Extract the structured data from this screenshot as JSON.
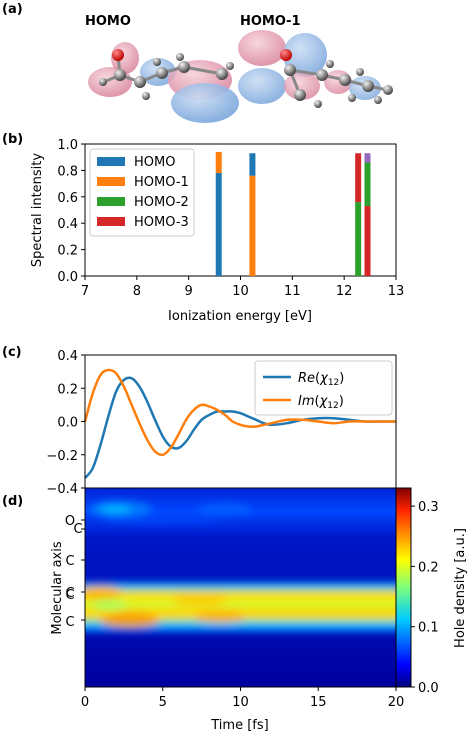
{
  "panel_labels": [
    "(a)",
    "(b)",
    "(c)",
    "(d)"
  ],
  "orbital_labels": [
    "HOMO",
    "HOMO-1"
  ],
  "chart_data": [
    {
      "panel": "(b)",
      "type": "bar",
      "xlabel": "Ionization energy [eV]",
      "ylabel": "Spectral intensity",
      "xlim": [
        7,
        13
      ],
      "ylim": [
        0,
        1.0
      ],
      "xticks": [
        "7",
        "8",
        "9",
        "10",
        "11",
        "12",
        "13"
      ],
      "yticks": [
        "0.0",
        "0.2",
        "0.4",
        "0.6",
        "0.8",
        "1.0"
      ],
      "legend_position": "top-left",
      "series": [
        {
          "name": "HOMO",
          "color": "#1f77b4"
        },
        {
          "name": "HOMO-1",
          "color": "#ff7f0e"
        },
        {
          "name": "HOMO-2",
          "color": "#2ca02c"
        },
        {
          "name": "HOMO-3",
          "color": "#d62728"
        },
        {
          "color": "#9467bd"
        }
      ],
      "stacked_bars": [
        {
          "x": 9.58,
          "segments": [
            {
              "series": 0,
              "from": 0.0,
              "to": 0.78
            },
            {
              "series": 1,
              "from": 0.78,
              "to": 0.94
            }
          ]
        },
        {
          "x": 10.23,
          "segments": [
            {
              "series": 1,
              "from": 0.0,
              "to": 0.76
            },
            {
              "series": 0,
              "from": 0.76,
              "to": 0.93
            }
          ]
        },
        {
          "x": 12.27,
          "segments": [
            {
              "series": 2,
              "from": 0.0,
              "to": 0.56
            },
            {
              "series": 3,
              "from": 0.56,
              "to": 0.93
            }
          ]
        },
        {
          "x": 12.45,
          "segments": [
            {
              "series": 3,
              "from": 0.0,
              "to": 0.53
            },
            {
              "series": 2,
              "from": 0.53,
              "to": 0.86
            },
            {
              "series": 4,
              "from": 0.86,
              "to": 0.93
            }
          ]
        }
      ]
    },
    {
      "panel": "(c)",
      "type": "line",
      "xlim": [
        0,
        20
      ],
      "ylim": [
        -0.4,
        0.4
      ],
      "yticks": [
        "0.4",
        "0.2",
        "0.0",
        "−0.2",
        "−0.4"
      ],
      "legend_position": "top-right",
      "series": [
        {
          "name_base": "Re",
          "name_arg": "χ",
          "name_sub": "12",
          "color": "#1f77b4",
          "x": [
            0,
            0.5,
            1,
            1.5,
            2,
            2.5,
            3,
            3.5,
            4,
            4.5,
            5,
            5.5,
            6,
            6.5,
            7,
            7.5,
            8,
            8.5,
            9,
            9.5,
            10,
            10.5,
            11,
            11.5,
            12,
            13,
            14,
            15,
            16,
            17,
            18,
            19,
            20
          ],
          "y": [
            -0.34,
            -0.28,
            -0.14,
            0.03,
            0.18,
            0.25,
            0.26,
            0.21,
            0.12,
            0.01,
            -0.09,
            -0.15,
            -0.16,
            -0.12,
            -0.05,
            0.01,
            0.04,
            0.06,
            0.06,
            0.06,
            0.05,
            0.03,
            0.01,
            -0.01,
            -0.02,
            -0.01,
            0.01,
            0.02,
            0.02,
            0.01,
            0.0,
            0.0,
            0.0
          ]
        },
        {
          "name_base": "Im",
          "name_arg": "χ",
          "name_sub": "12",
          "color": "#ff7f0e",
          "x": [
            0,
            0.5,
            1,
            1.5,
            2,
            2.5,
            3,
            3.5,
            4,
            4.5,
            5,
            5.5,
            6,
            6.5,
            7,
            7.5,
            8,
            8.5,
            9,
            9.5,
            10,
            10.5,
            11,
            11.5,
            12,
            13,
            14,
            15,
            16,
            17,
            18,
            19,
            20
          ],
          "y": [
            0.0,
            0.17,
            0.28,
            0.31,
            0.29,
            0.21,
            0.1,
            -0.01,
            -0.11,
            -0.18,
            -0.2,
            -0.16,
            -0.08,
            0.01,
            0.07,
            0.1,
            0.09,
            0.07,
            0.04,
            0.0,
            -0.02,
            -0.03,
            -0.03,
            -0.02,
            -0.01,
            0.01,
            0.01,
            0.0,
            -0.01,
            0.0,
            0.0,
            0.0,
            0.0
          ]
        }
      ]
    },
    {
      "panel": "(d)",
      "type": "heatmap",
      "xlabel": "Time [fs]",
      "ylabel": "Molecular axis",
      "xlim": [
        0,
        20
      ],
      "xticks": [
        "0",
        "5",
        "10",
        "15",
        "20"
      ],
      "ytick_labels": [
        "O",
        "C",
        "C",
        "C",
        "C",
        "C"
      ],
      "colorbar_label": "Hole density [a.u.]",
      "colorbar_range": [
        0.0,
        0.33
      ],
      "colorbar_ticks": [
        "0.3",
        "0.2",
        "0.1",
        "0.0"
      ]
    }
  ]
}
